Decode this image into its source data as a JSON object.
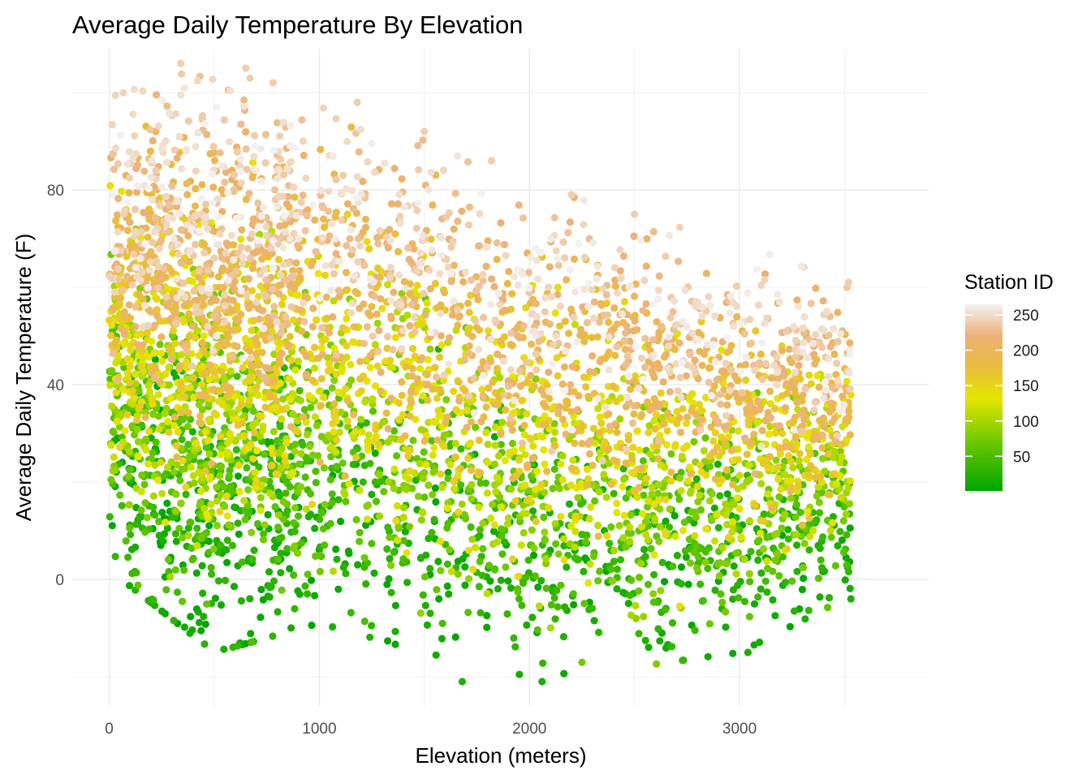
{
  "chart_data": {
    "type": "scatter",
    "title": "Average Daily Temperature By Elevation",
    "xlabel": "Elevation (meters)",
    "ylabel": "Average Daily Temperature (F)",
    "xlim": [
      -180,
      3900
    ],
    "ylim": [
      -26,
      109
    ],
    "x_ticks": [
      0,
      1000,
      2000,
      3000
    ],
    "x_tick_labels": [
      "0",
      "1000",
      "2000",
      "3000"
    ],
    "y_ticks": [
      0,
      40,
      80
    ],
    "y_tick_labels": [
      "0",
      "40",
      "80"
    ],
    "grid": true,
    "legend": {
      "title": "Station ID",
      "position": "right",
      "type": "continuous-colorbar",
      "range": [
        1,
        265
      ],
      "ticks": [
        50,
        100,
        150,
        200,
        250
      ],
      "tick_labels": [
        "50",
        "100",
        "150",
        "200",
        "250"
      ],
      "colors": [
        {
          "value": 1,
          "color": "#00a600"
        },
        {
          "value": 66,
          "color": "#63c600"
        },
        {
          "value": 132,
          "color": "#e6e600"
        },
        {
          "value": 175,
          "color": "#e9bd3a"
        },
        {
          "value": 220,
          "color": "#ecb176"
        },
        {
          "value": 265,
          "color": "#f2f2f2"
        }
      ]
    },
    "summary_by_elevation": [
      {
        "elevation": 0,
        "temp_min": 2,
        "temp_max": 99,
        "temp_center": 55
      },
      {
        "elevation": 500,
        "temp_min": -15,
        "temp_max": 106,
        "temp_center": 50
      },
      {
        "elevation": 1000,
        "temp_min": -9,
        "temp_max": 97,
        "temp_center": 42
      },
      {
        "elevation": 1500,
        "temp_min": -15,
        "temp_max": 92,
        "temp_center": 35
      },
      {
        "elevation": 2000,
        "temp_min": -20,
        "temp_max": 81,
        "temp_center": 32
      },
      {
        "elevation": 2500,
        "temp_min": -18,
        "temp_max": 75,
        "temp_center": 30
      },
      {
        "elevation": 3000,
        "temp_min": -15,
        "temp_max": 69,
        "temp_center": 28
      },
      {
        "elevation": 3500,
        "temp_min": -4,
        "temp_max": 61,
        "temp_center": 27
      }
    ],
    "notable_points": [
      {
        "x": 340,
        "y": 106
      },
      {
        "x": 650,
        "y": 105
      },
      {
        "x": 780,
        "y": 102
      },
      {
        "x": 1180,
        "y": 98
      },
      {
        "x": 1500,
        "y": 92
      },
      {
        "x": 1820,
        "y": 86
      },
      {
        "x": 2200,
        "y": 79
      },
      {
        "x": 2500,
        "y": 75
      },
      {
        "x": 3520,
        "y": 61
      },
      {
        "x": 1680,
        "y": -21
      },
      {
        "x": 2060,
        "y": -21
      },
      {
        "x": 3040,
        "y": -15
      },
      {
        "x": 3530,
        "y": -4
      }
    ]
  }
}
